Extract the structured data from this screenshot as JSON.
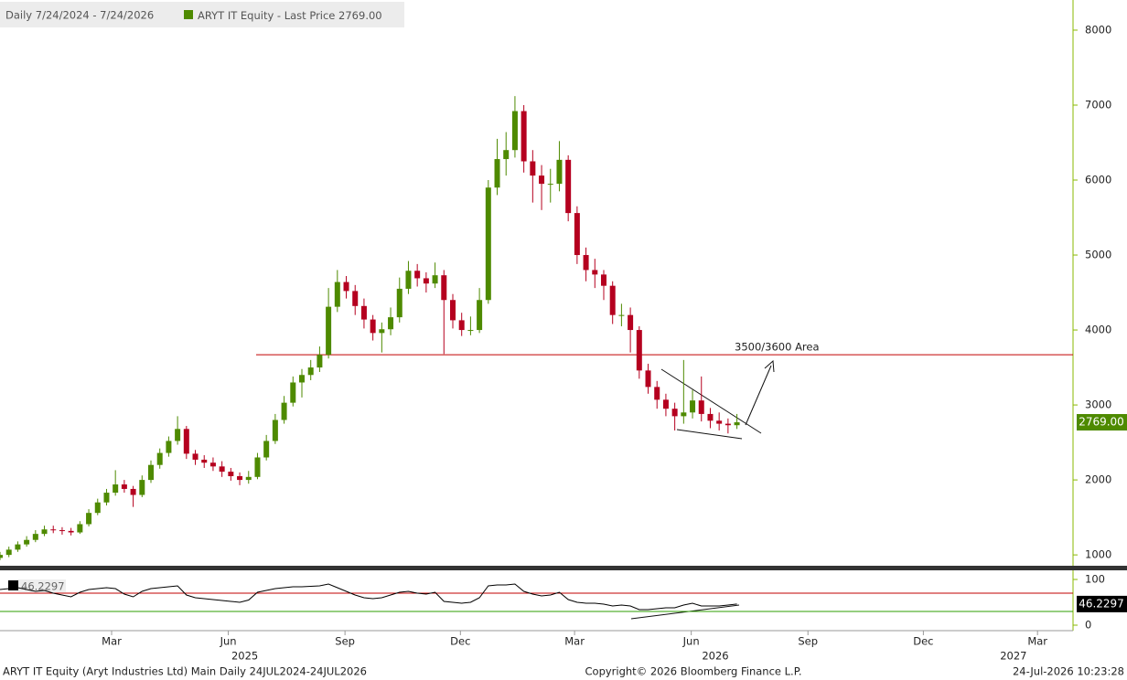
{
  "chart_data": [
    {
      "type": "candlestick",
      "title": "Daily 7/24/2024 - 7/24/2026",
      "series": [
        {
          "name": "ARYT IT Equity - Last Price",
          "color": "#4e8a00",
          "up_color": "#4e8a00",
          "down_color": "#b5001f",
          "last_label": "2769.00",
          "x": [
            -29,
            -22,
            -15,
            -8,
            -1,
            6,
            13,
            20,
            27,
            34,
            41,
            48,
            55,
            62,
            69,
            76,
            83,
            90,
            97,
            104,
            111,
            118,
            125,
            132,
            139,
            146,
            153,
            160,
            167,
            174,
            181,
            188,
            195,
            202,
            209,
            216,
            223,
            230,
            237,
            244,
            251,
            258,
            265,
            272,
            279,
            286,
            293,
            300,
            307,
            314,
            321,
            328,
            335,
            342,
            349,
            356,
            363,
            370,
            377,
            384,
            391,
            398,
            405,
            412,
            419,
            426,
            433,
            440,
            447,
            454,
            461,
            468,
            475,
            482,
            489,
            496,
            503,
            510,
            517,
            524,
            531,
            538,
            545,
            552
          ],
          "open": [
            960,
            1000,
            1070,
            1140,
            1200,
            1280,
            1340,
            1330,
            1320,
            1300,
            1410,
            1560,
            1700,
            1830,
            1940,
            1880,
            1800,
            2000,
            2200,
            2360,
            2520,
            2680,
            2350,
            2270,
            2230,
            2180,
            2110,
            2050,
            2000,
            2040,
            2300,
            2520,
            2800,
            3030,
            3300,
            3400,
            3500,
            3670,
            4310,
            4640,
            4520,
            4320,
            4140,
            3960,
            4010,
            4170,
            4550,
            4790,
            4690,
            4620,
            4730,
            4400,
            4130,
            4000,
            4000,
            4400,
            5900,
            6280,
            6400,
            6920,
            6250,
            6060,
            5950,
            5950,
            6270,
            5560,
            5000,
            4800,
            4740,
            4590,
            4200,
            4200,
            4000,
            3460,
            3240,
            3070,
            2950,
            2850,
            2900,
            3060,
            2880,
            2790,
            2750,
            2730
          ],
          "high": [
            1040,
            1110,
            1180,
            1250,
            1330,
            1390,
            1390,
            1370,
            1360,
            1450,
            1610,
            1750,
            1880,
            2130,
            2000,
            1920,
            2060,
            2260,
            2420,
            2580,
            2850,
            2720,
            2400,
            2330,
            2300,
            2250,
            2160,
            2100,
            2120,
            2360,
            2600,
            2880,
            3120,
            3380,
            3480,
            3600,
            3780,
            4560,
            4800,
            4720,
            4600,
            4420,
            4200,
            4100,
            4300,
            4700,
            4920,
            4880,
            4770,
            4900,
            4800,
            4480,
            4230,
            4180,
            4560,
            6000,
            6550,
            6640,
            7120,
            7000,
            6400,
            6200,
            6150,
            6520,
            6330,
            5650,
            5100,
            4950,
            4800,
            4650,
            4350,
            4300,
            4050,
            3550,
            3320,
            3150,
            3030,
            3600,
            3200,
            3380,
            2960,
            2900,
            2820,
            2880
          ],
          "low": [
            930,
            970,
            1040,
            1110,
            1170,
            1250,
            1290,
            1270,
            1260,
            1280,
            1380,
            1530,
            1660,
            1790,
            1830,
            1640,
            1770,
            1960,
            2150,
            2310,
            2470,
            2280,
            2200,
            2160,
            2120,
            2040,
            1990,
            1930,
            1950,
            2010,
            2260,
            2480,
            2750,
            2980,
            3100,
            3330,
            3440,
            3620,
            4240,
            4420,
            4200,
            4020,
            3860,
            3700,
            3930,
            4100,
            4480,
            4580,
            4500,
            4560,
            3680,
            4020,
            3920,
            3930,
            3960,
            4350,
            5800,
            6060,
            6300,
            6100,
            5700,
            5600,
            5700,
            5850,
            5450,
            4880,
            4650,
            4560,
            4400,
            4080,
            4050,
            3700,
            3350,
            3150,
            2950,
            2850,
            2660,
            2750,
            2820,
            2780,
            2690,
            2660,
            2620,
            2680
          ],
          "close": [
            1000,
            1070,
            1140,
            1200,
            1280,
            1340,
            1330,
            1320,
            1300,
            1410,
            1560,
            1700,
            1830,
            1940,
            1880,
            1800,
            2000,
            2200,
            2360,
            2520,
            2680,
            2350,
            2270,
            2230,
            2180,
            2110,
            2050,
            2000,
            2040,
            2300,
            2520,
            2800,
            3030,
            3300,
            3400,
            3500,
            3670,
            4310,
            4640,
            4520,
            4320,
            4140,
            3960,
            4010,
            4170,
            4550,
            4790,
            4690,
            4620,
            4730,
            4400,
            4130,
            4000,
            4000,
            4400,
            5900,
            6280,
            6400,
            6920,
            6250,
            6060,
            5950,
            5950,
            6270,
            5560,
            5000,
            4800,
            4740,
            4590,
            4200,
            4200,
            4000,
            3460,
            3240,
            3070,
            2950,
            2850,
            2900,
            3060,
            2880,
            2790,
            2750,
            2730,
            2769
          ]
        }
      ],
      "xlim": [
        -29,
        817
      ],
      "xticks": [
        {
          "value": 59,
          "label": "Mar"
        },
        {
          "value": 151,
          "label": "Jun"
        },
        {
          "value": 243,
          "label": "Sep"
        },
        {
          "value": 334,
          "label": "Dec"
        },
        {
          "value": 424,
          "label": "Mar"
        },
        {
          "value": 516,
          "label": "Jun"
        },
        {
          "value": 608,
          "label": "Sep"
        },
        {
          "value": 699,
          "label": "Dec"
        },
        {
          "value": 789,
          "label": "Mar"
        }
      ],
      "x_year_labels": [
        {
          "value": 164,
          "label": "2025"
        },
        {
          "value": 535,
          "label": "2026"
        },
        {
          "value": 770,
          "label": "2027"
        }
      ],
      "ylim": [
        843,
        8402
      ],
      "yticks": [
        1000,
        2000,
        3000,
        4000,
        5000,
        6000,
        7000,
        8000
      ],
      "annotations": [
        {
          "text": "3500/3600 Area",
          "level": 3670,
          "color": "#c00000"
        }
      ],
      "footer": {
        "left": "ARYT IT Equity (Aryt Industries Ltd) Main Daily 24JUL2024-24JUL2026",
        "center": "Copyright© 2026 Bloomberg Finance L.P.",
        "right": "24-Jul-2026 10:23:28"
      }
    },
    {
      "type": "line",
      "series": [
        {
          "color": "#000000",
          "last_label": "46.2297",
          "x": [
            -29,
            -22,
            -15,
            -8,
            -1,
            6,
            13,
            20,
            27,
            34,
            41,
            48,
            55,
            62,
            69,
            76,
            83,
            90,
            97,
            104,
            111,
            118,
            125,
            132,
            139,
            146,
            153,
            160,
            167,
            174,
            181,
            188,
            195,
            202,
            209,
            216,
            223,
            230,
            237,
            244,
            251,
            258,
            265,
            272,
            279,
            286,
            293,
            300,
            307,
            314,
            321,
            328,
            335,
            342,
            349,
            356,
            363,
            370,
            377,
            384,
            391,
            398,
            405,
            412,
            419,
            426,
            433,
            440,
            447,
            454,
            461,
            468,
            475,
            482,
            489,
            496,
            503,
            510,
            517,
            524,
            531,
            538,
            545,
            552
          ],
          "values": [
            78,
            80,
            82,
            78,
            74,
            76,
            70,
            66,
            62,
            72,
            78,
            80,
            82,
            80,
            68,
            62,
            74,
            80,
            82,
            84,
            86,
            66,
            60,
            58,
            56,
            54,
            52,
            50,
            55,
            72,
            76,
            80,
            82,
            84,
            84,
            85,
            86,
            90,
            82,
            74,
            66,
            60,
            58,
            60,
            66,
            72,
            74,
            70,
            68,
            72,
            52,
            50,
            48,
            50,
            60,
            86,
            88,
            88,
            90,
            74,
            68,
            64,
            66,
            72,
            56,
            50,
            48,
            48,
            46,
            42,
            44,
            42,
            34,
            34,
            36,
            38,
            38,
            44,
            48,
            42,
            42,
            42,
            44,
            46.2297
          ]
        }
      ],
      "ylim": [
        -12,
        118
      ],
      "yticks": [
        0,
        100
      ],
      "levels": [
        {
          "value": 70,
          "color": "#c00000"
        },
        {
          "value": 30,
          "color": "#2e9e00"
        }
      ]
    }
  ]
}
